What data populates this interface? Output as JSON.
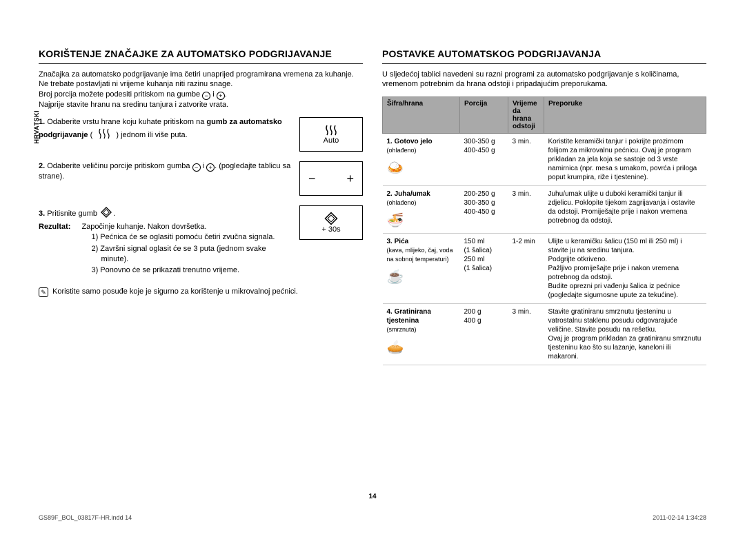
{
  "language_label": "HRVATSKI",
  "left": {
    "heading": "KORIŠTENJE ZNAČAJKE ZA AUTOMATSKO PODGRIJAVANJE",
    "intro1": "Značajka za automatsko podgrijavanje ima četiri unaprijed programirana vremena za kuhanje.",
    "intro2": "Ne trebate postavljati ni vrijeme kuhanja niti razinu snage.",
    "intro3a": "Broj porcija možete podesiti pritiskom na gumbe ",
    "intro3b": " i ",
    "intro3c": ".",
    "intro4": "Najprije stavite hranu na sredinu tanjura i zatvorite vrata.",
    "step1_a": "Odaberite vrstu hrane koju kuhate pritiskom na ",
    "step1_b": "gumb za automatsko podgrijavanje",
    "step1_c": " ( ",
    "step1_d": " ) jednom ili više puta.",
    "step2_a": "Odaberite veličinu porcije pritiskom gumba ",
    "step2_b": " i ",
    "step2_c": ". (pogledajte tablicu sa strane).",
    "step3_a": "Pritisnite gumb ",
    "step3_b": ".",
    "result_label": "Rezultat:",
    "result_intro": "Započinje kuhanje. Nakon dovršetka.",
    "result_1": "1)  Pećnica će se oglasiti pomoću četiri zvučna signala.",
    "result_2": "2)  Završni signal oglasit će se 3 puta (jednom svake minute).",
    "result_3": "3)  Ponovno će se prikazati trenutno vrijeme.",
    "note": "Koristite samo posuđe koje je sigurno za korištenje u mikrovalnoj pećnici.",
    "control_auto": "Auto",
    "control_30s": "+ 30s"
  },
  "right": {
    "heading": "POSTAVKE AUTOMATSKOG PODGRIJAVANJA",
    "intro": "U sljedećoj tablici navedeni su razni programi za automatsko podgrijavanje s količinama, vremenom potrebnim da hrana odstoji i pripadajućim preporukama.",
    "headers": {
      "code": "Šifra/hrana",
      "portion": "Porcija",
      "time": "Vrijeme da hrana odstoji",
      "rec": "Preporuke"
    },
    "rows": [
      {
        "code_main": "1. Gotovo jelo",
        "code_sub": "(ohlađeno)",
        "icon": "🍛",
        "portion": "300-350 g\n400-450 g",
        "time": "3 min.",
        "rec": "Koristite keramički tanjur i pokrijte prozirnom folijom za mikrovalnu pećnicu. Ovaj je program prikladan za jela koja se sastoje od 3 vrste namirnica (npr. mesa s umakom, povrća i priloga poput krumpira, riže i tjestenine)."
      },
      {
        "code_main": "2. Juha/umak",
        "code_sub": "(ohlađeno)",
        "icon": "🍜",
        "portion": "200-250 g\n300-350 g\n400-450 g",
        "time": "3 min.",
        "rec": "Juhu/umak ulijte u duboki keramički tanjur ili zdjelicu. Poklopite tijekom zagrijavanja i ostavite da odstoji. Promiješajte prije i nakon vremena potrebnog da odstoji."
      },
      {
        "code_main": "3. Pića",
        "code_sub": "(kava, mlijeko, čaj, voda na sobnoj temperaturi)",
        "icon": "☕",
        "portion": "150 ml\n(1 šalica)\n250 ml\n(1 šalica)",
        "time": "1-2 min",
        "rec": "Ulijte u keramičku šalicu (150 ml ili 250 ml) i stavite ju na sredinu tanjura.\nPodgrijte otkriveno.\nPažljivo promiješajte prije i nakon vremena potrebnog da odstoji.\nBudite oprezni pri vađenju šalica iz pećnice (pogledajte sigurnosne upute za tekućine)."
      },
      {
        "code_main": "4. Gratinirana tjestenina",
        "code_sub": "(smrznuta)",
        "icon": "🥧",
        "portion": "200 g\n400 g",
        "time": "3 min.",
        "rec": "Stavite gratiniranu smrznutu tjesteninu u vatrostalnu staklenu posudu odgovarajuće veličine. Stavite posudu na rešetku.\nOvaj je program prikladan za gratiniranu smrznutu tjesteninu kao što su lazanje, kaneloni ili makaroni."
      }
    ]
  },
  "page_number": "14",
  "footer_left": "GS89F_BOL_03817F-HR.indd   14",
  "footer_right": "2011-02-14   1:34:28"
}
